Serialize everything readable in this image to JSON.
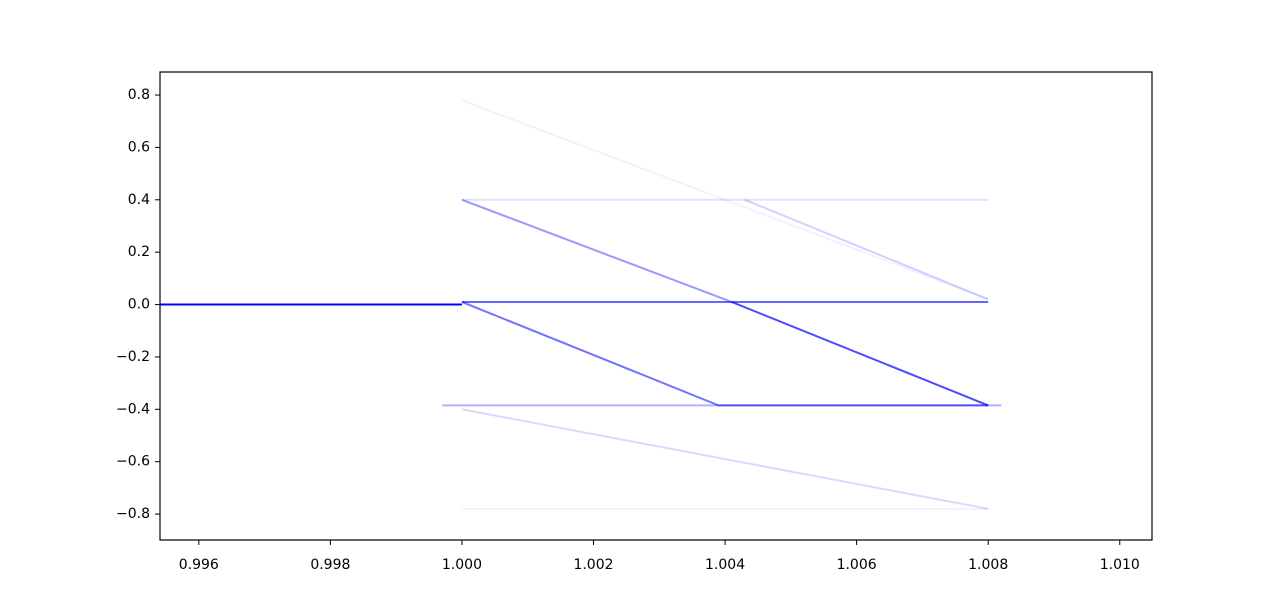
{
  "chart_data": {
    "type": "line",
    "xlim": [
      0.99541,
      1.01049
    ],
    "ylim": [
      -0.899,
      0.888
    ],
    "xticks": [
      0.996,
      0.998,
      {
        "value": 1.0,
        "label": "1.000"
      },
      1.002,
      1.004,
      1.006,
      1.008,
      {
        "value": 1.01,
        "label": "1.010"
      }
    ],
    "yticks": [
      {
        "value": -0.8,
        "label": "−0.8"
      },
      {
        "value": -0.6,
        "label": "−0.6"
      },
      {
        "value": -0.4,
        "label": "−0.4"
      },
      {
        "value": -0.2,
        "label": "−0.2"
      },
      {
        "value": 0,
        "label": "0.0"
      },
      0.2,
      0.4,
      0.6,
      0.8
    ],
    "grid": false,
    "series": [
      {
        "color": "#0000ff",
        "opacity": 1,
        "x": [
          0.99541,
          1.0
        ],
        "values": [
          0,
          0
        ]
      },
      {
        "color": "#0000ff",
        "opacity": 0.6,
        "x": [
          1.0,
          1.008
        ],
        "values": [
          0.01,
          0.01
        ]
      },
      {
        "color": "#0000ff",
        "opacity": 0.55,
        "x": [
          1.0,
          1.0039,
          1.008
        ],
        "values": [
          0.01,
          -0.385,
          -0.385
        ]
      },
      {
        "color": "#0000ff",
        "opacity": 0.7,
        "x": [
          1.0041,
          1.008
        ],
        "values": [
          0.01,
          -0.385
        ]
      },
      {
        "color": "#0000ff",
        "opacity": 0.4,
        "x": [
          1.0,
          1.0041
        ],
        "values": [
          0.4,
          0.01
        ]
      },
      {
        "color": "#0000ff",
        "opacity": 0.12,
        "x": [
          1.0,
          1.008
        ],
        "values": [
          0.4,
          0.4
        ]
      },
      {
        "color": "#0000ff",
        "opacity": 0.18,
        "x": [
          1.0043,
          1.008
        ],
        "values": [
          0.4,
          0.02
        ]
      },
      {
        "color": "#0000ff",
        "opacity": 0.3,
        "x": [
          0.9997,
          1.0082
        ],
        "values": [
          -0.385,
          -0.385
        ]
      },
      {
        "color": "#0000ff",
        "opacity": 0.15,
        "x": [
          1.0,
          1.008
        ],
        "values": [
          -0.4,
          -0.78
        ]
      },
      {
        "color": "#0000ff",
        "opacity": 0.05,
        "x": [
          1.0,
          1.008
        ],
        "values": [
          -0.78,
          -0.78
        ]
      },
      {
        "color": "#0000ff",
        "opacity": 0.05,
        "x": [
          1.0,
          1.004,
          1.008
        ],
        "values": [
          0.78,
          0.4,
          0.02
        ]
      }
    ]
  }
}
